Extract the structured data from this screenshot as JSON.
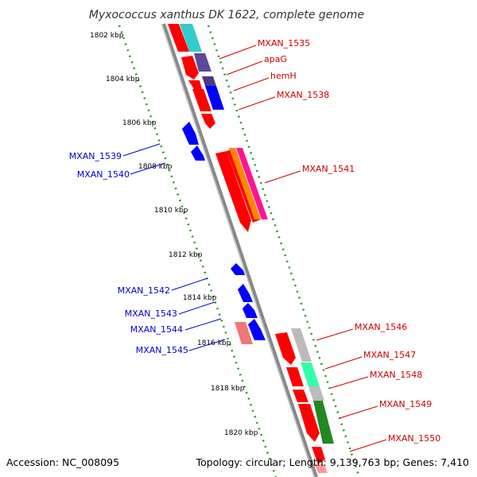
{
  "title": "Myxococcus xanthus DK 1622, complete genome",
  "footer": {
    "accession": "Accession: NC_008095",
    "topology": "Topology: circular; Length: 9,139,763 bp; Genes: 7,410"
  },
  "ticks": [
    "1802 kbp",
    "1804 kbp",
    "1806 kbp",
    "1808 kbp",
    "1810 kbp",
    "1812 kbp",
    "1814 kbp",
    "1816 kbp",
    "1818 kbp",
    "1820 kbp"
  ],
  "labels_forward": [
    "MXAN_1535",
    "apaG",
    "hemH",
    "MXAN_1538",
    "MXAN_1541",
    "MXAN_1546",
    "MXAN_1547",
    "MXAN_1548",
    "MXAN_1549",
    "MXAN_1550"
  ],
  "labels_reverse": [
    "MXAN_1539",
    "MXAN_1540",
    "MXAN_1542",
    "MXAN_1543",
    "MXAN_1544",
    "MXAN_1545"
  ],
  "colors": {
    "forward_label": "#cc0000",
    "reverse_label": "#0000cc",
    "cds": "#ff0000",
    "reverse_cds": "#0000ff",
    "backbone": "#888888",
    "tick": "#229922"
  }
}
